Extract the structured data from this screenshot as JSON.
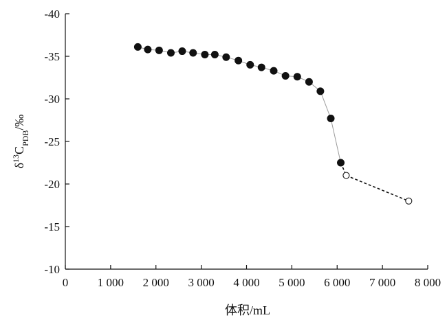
{
  "chart_data": {
    "type": "scatter",
    "xlabel": "体积/mL",
    "ylabel": {
      "base": "δ",
      "sup": "13",
      "main": "C",
      "sub": "PDB",
      "tail": "/‰"
    },
    "xlim": [
      0,
      8000
    ],
    "ylim": [
      -10,
      -40
    ],
    "y_axis_reversed": true,
    "x_ticks": [
      0,
      1000,
      2000,
      3000,
      4000,
      5000,
      6000,
      7000,
      8000
    ],
    "x_tick_labels": [
      "0",
      "1 000",
      "2 000",
      "3 000",
      "4 000",
      "5 000",
      "6 000",
      "7 000",
      "8 000"
    ],
    "y_ticks": [
      -40,
      -35,
      -30,
      -25,
      -20,
      -15,
      -10
    ],
    "y_tick_labels": [
      "-40",
      "-35",
      "-30",
      "-25",
      "-20",
      "-15",
      "-10"
    ],
    "grid": false,
    "legend": "none",
    "series": [
      {
        "marker": "filled-circle",
        "line": "solid-gray-thin",
        "color": "#111111",
        "line_color": "#9a9a9a",
        "points": [
          [
            1600,
            -36.1
          ],
          [
            1820,
            -35.8
          ],
          [
            2070,
            -35.7
          ],
          [
            2330,
            -35.4
          ],
          [
            2580,
            -35.6
          ],
          [
            2820,
            -35.4
          ],
          [
            3080,
            -35.2
          ],
          [
            3300,
            -35.2
          ],
          [
            3550,
            -34.9
          ],
          [
            3820,
            -34.5
          ],
          [
            4080,
            -34.0
          ],
          [
            4330,
            -33.7
          ],
          [
            4600,
            -33.3
          ],
          [
            4860,
            -32.7
          ],
          [
            5120,
            -32.6
          ],
          [
            5380,
            -32.0
          ],
          [
            5630,
            -30.9
          ],
          [
            5860,
            -27.7
          ],
          [
            6080,
            -22.5
          ]
        ]
      },
      {
        "marker": "open-circle",
        "line": "dashed-black",
        "color": "#111111",
        "points": [
          [
            6200,
            -21.0
          ],
          [
            7580,
            -18.0
          ]
        ]
      }
    ],
    "connector": {
      "line": "dashed-black",
      "from": [
        6080,
        -22.5
      ],
      "to": [
        6200,
        -21.0
      ]
    }
  }
}
